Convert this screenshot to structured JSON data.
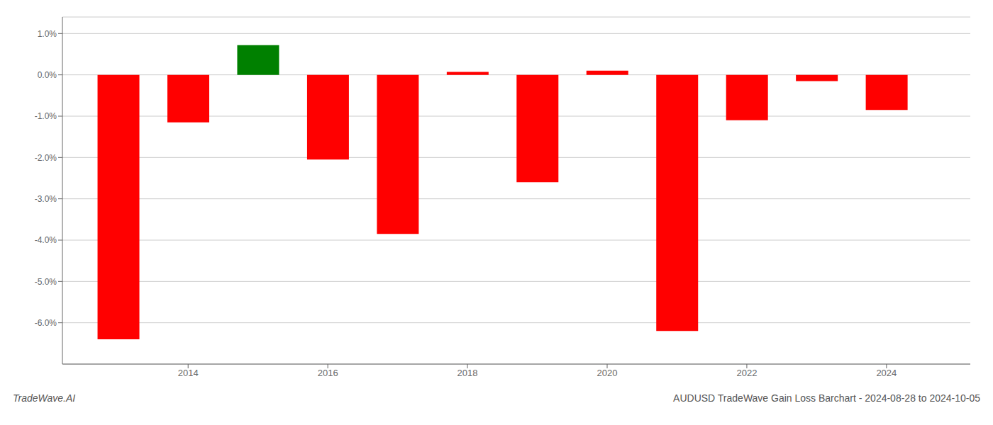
{
  "chart_data": {
    "type": "bar",
    "title": "AUDUSD TradeWave Gain Loss Barchart - 2024-08-28 to 2024-10-05",
    "annotations": [
      "TradeWave.AI"
    ],
    "x": [
      2013,
      2014,
      2015,
      2016,
      2017,
      2018,
      2019,
      2020,
      2021,
      2022,
      2023,
      2024
    ],
    "values": [
      -0.064,
      -0.0115,
      0.0072,
      -0.0205,
      -0.0385,
      0.0007,
      -0.026,
      0.001,
      -0.062,
      -0.011,
      -0.0015,
      -0.0085
    ],
    "colors": [
      "#ff0000",
      "#ff0000",
      "#008000",
      "#ff0000",
      "#ff0000",
      "#ff0000",
      "#ff0000",
      "#ff0000",
      "#ff0000",
      "#ff0000",
      "#ff0000",
      "#ff0000"
    ],
    "xlim": [
      2012.2,
      2025.2
    ],
    "xticks": [
      2014,
      2016,
      2018,
      2020,
      2022,
      2024
    ],
    "ylim": [
      -0.07,
      0.014
    ],
    "yticks": [
      {
        "value": -0.06,
        "label": "-6.0%"
      },
      {
        "value": -0.05,
        "label": "-5.0%"
      },
      {
        "value": -0.04,
        "label": "-4.0%"
      },
      {
        "value": -0.03,
        "label": "-3.0%"
      },
      {
        "value": -0.02,
        "label": "-2.0%"
      },
      {
        "value": -0.01,
        "label": "-1.0%"
      },
      {
        "value": 0.0,
        "label": "0.0%"
      },
      {
        "value": 0.01,
        "label": "1.0%"
      }
    ],
    "grid": true
  }
}
